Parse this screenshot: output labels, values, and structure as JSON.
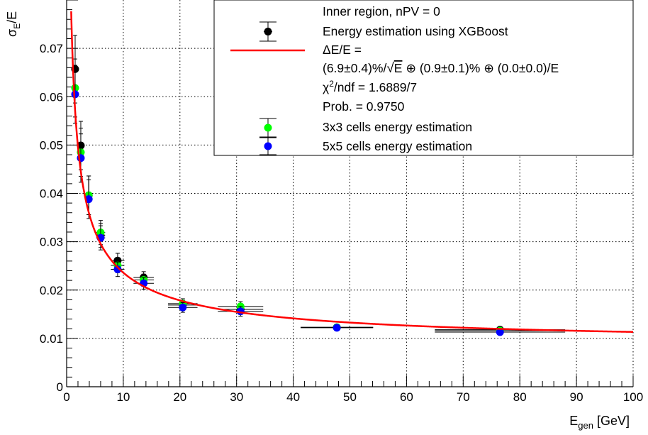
{
  "chart_data": {
    "type": "scatter",
    "xlabel": "E",
    "xlabel_sub": "gen",
    "xlabel_unit": " [GeV]",
    "ylabel_sigma": "σ",
    "ylabel_sub": "E",
    "ylabel_rest": "/E",
    "xlim": [
      0,
      100
    ],
    "ylim": [
      0,
      0.08
    ],
    "x_ticks": [
      0,
      10,
      20,
      30,
      40,
      50,
      60,
      70,
      80,
      90,
      100
    ],
    "y_ticks": [
      0,
      0.01,
      0.02,
      0.03,
      0.04,
      0.05,
      0.06,
      0.07
    ],
    "x_tick_labels": [
      "0",
      "10",
      "20",
      "30",
      "40",
      "50",
      "60",
      "70",
      "80",
      "90",
      "100"
    ],
    "y_tick_labels": [
      "0",
      "0.01",
      "0.02",
      "0.03",
      "0.04",
      "0.05",
      "0.06",
      "0.07"
    ],
    "grid": true,
    "legend_position": "top-right",
    "legend": {
      "header": "Inner region, nPV = 0",
      "entry_xgboost": "Energy estimation using XGBoost",
      "fit_line1": "ΔE/E =",
      "fit_line2_a": "(6.9±0.4)%/",
      "fit_line2_sqrt": "E",
      "fit_line2_b": " ⊕ (0.9±0.1)% ⊕ (0.0±0.0)/E",
      "chi2_a": "χ",
      "chi2_sup": "2",
      "chi2_b": "/ndf = 1.6889/7",
      "prob": "Prob. = 0.9750",
      "entry_3x3": "3x3 cells energy estimation",
      "entry_5x5": "5x5 cells energy estimation"
    },
    "fit": {
      "a": 0.069,
      "b": 0.009,
      "c": 0.0,
      "color": "#ff0000"
    },
    "series": [
      {
        "name": "Energy estimation using XGBoost",
        "color": "#000000",
        "points": [
          {
            "x": 1.5,
            "y": 0.0657,
            "ex": 0.3,
            "ey": 0.007
          },
          {
            "x": 2.5,
            "y": 0.0499,
            "ex": 0.4,
            "ey": 0.005
          },
          {
            "x": 3.9,
            "y": 0.0396,
            "ex": 0.5,
            "ey": 0.004
          },
          {
            "x": 6.0,
            "y": 0.0313,
            "ex": 0.8,
            "ey": 0.0025
          },
          {
            "x": 9.0,
            "y": 0.0261,
            "ex": 1.2,
            "ey": 0.0015
          },
          {
            "x": 13.6,
            "y": 0.0226,
            "ex": 1.8,
            "ey": 0.0012
          },
          {
            "x": 20.5,
            "y": 0.0169,
            "ex": 2.6,
            "ey": 0.001
          },
          {
            "x": 30.7,
            "y": 0.016,
            "ex": 4.0,
            "ey": 0.001
          },
          {
            "x": 47.7,
            "y": 0.0123,
            "ex": 6.4,
            "ey": 0.0006
          },
          {
            "x": 76.5,
            "y": 0.0118,
            "ex": 11.5,
            "ey": 0.0004
          }
        ]
      },
      {
        "name": "3x3 cells energy estimation",
        "color": "#00ff00",
        "points": [
          {
            "x": 1.5,
            "y": 0.0618,
            "ex": 0.3,
            "ey": 0.006
          },
          {
            "x": 2.5,
            "y": 0.0485,
            "ex": 0.4,
            "ey": 0.005
          },
          {
            "x": 3.9,
            "y": 0.0396,
            "ex": 0.5,
            "ey": 0.004
          },
          {
            "x": 6.0,
            "y": 0.0319,
            "ex": 0.8,
            "ey": 0.0025
          },
          {
            "x": 9.0,
            "y": 0.0251,
            "ex": 1.2,
            "ey": 0.0015
          },
          {
            "x": 13.6,
            "y": 0.0221,
            "ex": 1.8,
            "ey": 0.0012
          },
          {
            "x": 20.5,
            "y": 0.0172,
            "ex": 2.6,
            "ey": 0.001
          },
          {
            "x": 30.7,
            "y": 0.0166,
            "ex": 4.0,
            "ey": 0.001
          },
          {
            "x": 47.7,
            "y": 0.0123,
            "ex": 6.4,
            "ey": 0.0006
          },
          {
            "x": 76.5,
            "y": 0.0116,
            "ex": 11.5,
            "ey": 0.0004
          }
        ]
      },
      {
        "name": "5x5 cells energy estimation",
        "color": "#0000ff",
        "points": [
          {
            "x": 1.5,
            "y": 0.0605,
            "ex": 0.3,
            "ey": 0.006
          },
          {
            "x": 2.5,
            "y": 0.0473,
            "ex": 0.4,
            "ey": 0.005
          },
          {
            "x": 3.9,
            "y": 0.0388,
            "ex": 0.5,
            "ey": 0.004
          },
          {
            "x": 6.0,
            "y": 0.0308,
            "ex": 0.8,
            "ey": 0.0025
          },
          {
            "x": 9.0,
            "y": 0.0243,
            "ex": 1.2,
            "ey": 0.0015
          },
          {
            "x": 13.6,
            "y": 0.0214,
            "ex": 1.8,
            "ey": 0.0012
          },
          {
            "x": 20.5,
            "y": 0.0164,
            "ex": 2.6,
            "ey": 0.001
          },
          {
            "x": 30.7,
            "y": 0.0156,
            "ex": 4.0,
            "ey": 0.001
          },
          {
            "x": 47.7,
            "y": 0.0122,
            "ex": 6.4,
            "ey": 0.0006
          },
          {
            "x": 76.5,
            "y": 0.0113,
            "ex": 11.5,
            "ey": 0.0004
          }
        ]
      }
    ]
  }
}
